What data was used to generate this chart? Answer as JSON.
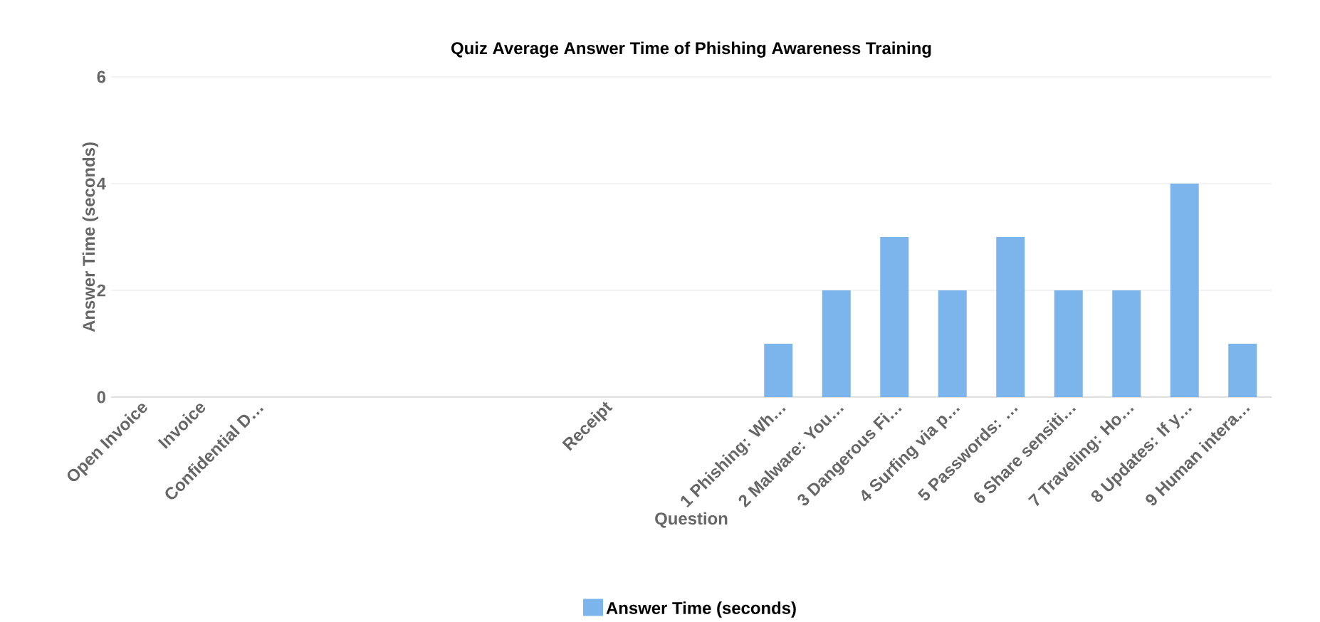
{
  "chart_data": {
    "type": "bar",
    "title": "Quiz Average Answer Time of Phishing Awareness Training",
    "xlabel": "Question",
    "ylabel": "Answer Time (seconds)",
    "categories": [
      "Open Invoice",
      "Invoice",
      "Confidential D…",
      null,
      null,
      null,
      null,
      null,
      "Receipt",
      null,
      null,
      "1 Phishing: Wh…",
      "2 Malware: You…",
      "3 Dangerous Fi…",
      "4 Surfing via p…",
      "5 Passwords: …",
      "6 Share sensiti…",
      "7 Traveling: Ho…",
      "8 Updates: If y…",
      "9 Human intera…"
    ],
    "series": [
      {
        "name": "Answer Time (seconds)",
        "color": "#7cb5ec",
        "values": [
          0,
          0,
          0,
          0,
          0,
          0,
          0,
          0,
          0,
          0,
          0,
          1,
          2,
          3,
          2,
          3,
          2,
          2,
          4,
          1
        ]
      }
    ],
    "ylim": [
      0,
      6
    ],
    "yticks": [
      0,
      2,
      4,
      6
    ],
    "grid": "y",
    "legend": "bottom"
  }
}
